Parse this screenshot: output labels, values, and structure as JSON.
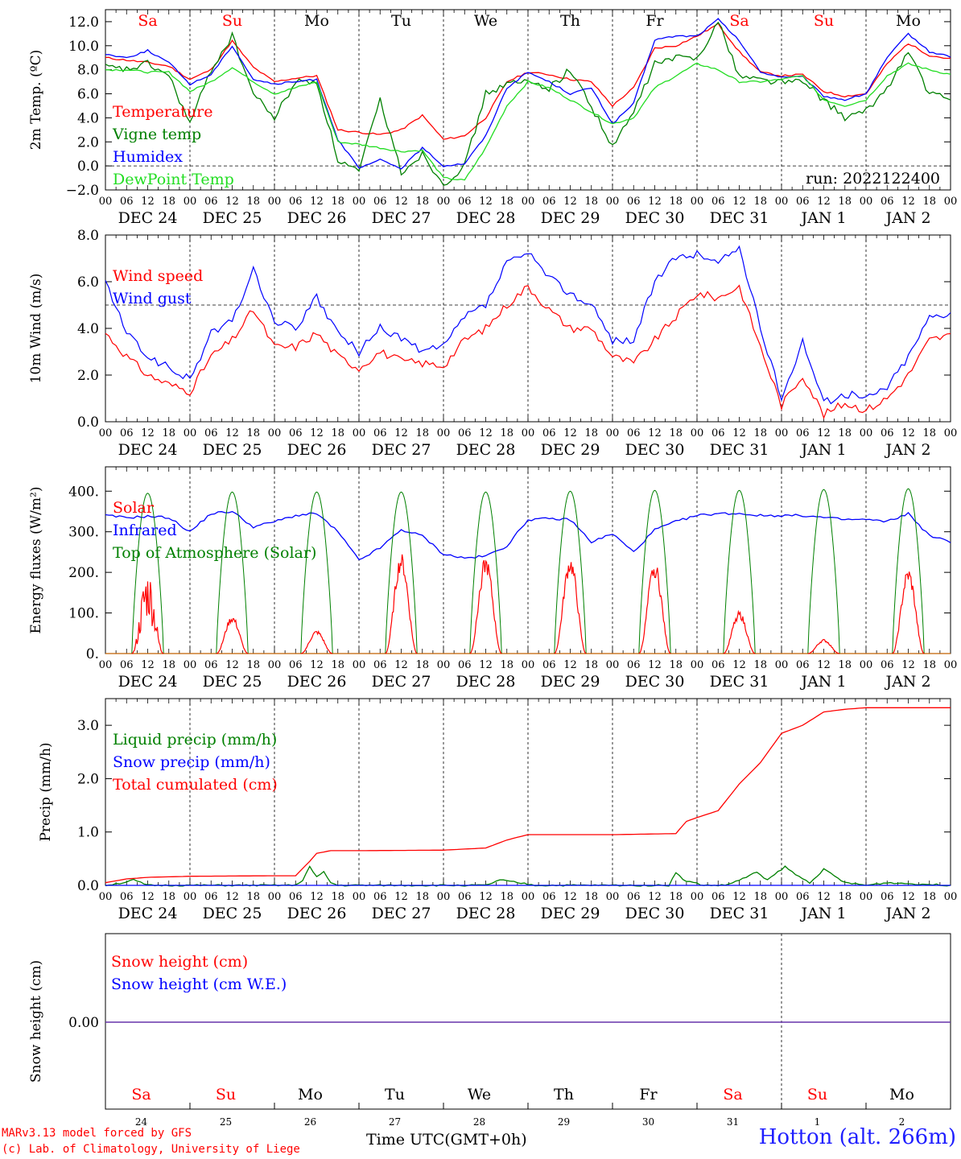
{
  "footer": {
    "credit1": "MARv3.13 model forced by GFS",
    "credit2": "(c) Lab. of Climatology, University of Liege",
    "time_label": "Time UTC(GMT+0h)",
    "station": "Hotton (alt. 266m)"
  },
  "chart_data": [
    {
      "type": "line",
      "panel": "temperature",
      "ylabel": "2m Temp. (ºC)",
      "ylim": [
        -2,
        13
      ],
      "yticks": [
        "−2.0",
        "0.0",
        "2.0",
        "4.0",
        "6.0",
        "8.0",
        "10.0",
        "12.0"
      ],
      "reference_line": 0,
      "annotation": "run: 2022122400",
      "day_names": [
        "Sa",
        "Su",
        "Mo",
        "Tu",
        "We",
        "Th",
        "Fr",
        "Sa",
        "Su",
        "Mo"
      ],
      "day_colors": [
        "#ff0000",
        "#ff0000",
        "#000000",
        "#000000",
        "#000000",
        "#000000",
        "#000000",
        "#ff0000",
        "#ff0000",
        "#000000"
      ],
      "hour_labels": [
        "00",
        "06",
        "12",
        "18"
      ],
      "date_labels": [
        "DEC 24",
        "DEC 25",
        "DEC 26",
        "DEC 27",
        "DEC 28",
        "DEC 29",
        "DEC 30",
        "DEC 31",
        "JAN  1",
        "JAN  2"
      ],
      "x_hours": [
        0,
        6,
        12,
        18,
        24,
        30,
        36,
        42,
        48,
        54,
        60,
        66,
        72,
        78,
        84,
        90,
        96,
        102,
        108,
        114,
        120,
        126,
        132,
        138,
        144,
        150,
        156,
        162,
        168,
        174,
        180,
        186,
        192,
        198,
        204,
        210,
        216,
        222,
        228,
        234,
        240
      ],
      "series": [
        {
          "name": "Temperature",
          "color": "#ff0000",
          "values": [
            9.0,
            8.8,
            8.6,
            8.3,
            7.2,
            8.0,
            10.4,
            8.2,
            7.0,
            7.3,
            7.5,
            3.0,
            2.8,
            2.6,
            3.0,
            4.2,
            2.2,
            2.5,
            4.0,
            7.0,
            7.8,
            7.6,
            7.2,
            7.0,
            5.0,
            6.5,
            9.8,
            10.0,
            10.8,
            11.8,
            9.5,
            7.8,
            7.5,
            7.6,
            6.2,
            5.8,
            6.0,
            8.5,
            10.2,
            9.2,
            8.9
          ]
        },
        {
          "name": "Vigne temp",
          "color": "#008000",
          "values": [
            8.2,
            8.0,
            8.5,
            7.5,
            3.5,
            8.0,
            10.8,
            6.0,
            4.0,
            7.0,
            7.0,
            0.5,
            -0.5,
            5.5,
            -0.5,
            1.0,
            -1.5,
            0.0,
            6.0,
            6.8,
            7.0,
            6.5,
            8.0,
            5.0,
            1.5,
            4.5,
            8.5,
            9.0,
            9.0,
            12.0,
            7.5,
            7.2,
            7.0,
            7.0,
            5.5,
            4.0,
            4.5,
            6.5,
            9.5,
            6.0,
            5.5
          ]
        },
        {
          "name": "Humidex",
          "color": "#0000ff",
          "values": [
            9.3,
            9.0,
            9.6,
            8.6,
            6.8,
            7.6,
            10.0,
            7.2,
            6.8,
            7.0,
            7.2,
            2.2,
            -0.2,
            0.5,
            -0.2,
            1.5,
            0.0,
            0.2,
            2.5,
            6.5,
            7.8,
            7.0,
            6.0,
            6.5,
            3.5,
            5.2,
            10.5,
            10.8,
            10.8,
            12.2,
            10.4,
            7.8,
            7.4,
            7.4,
            5.8,
            5.5,
            6.0,
            9.0,
            11.0,
            9.5,
            9.1
          ]
        },
        {
          "name": "DewPoint Temp",
          "color": "#22dd22",
          "values": [
            8.0,
            8.0,
            7.8,
            7.8,
            6.2,
            7.0,
            8.2,
            7.0,
            6.0,
            6.5,
            7.0,
            2.0,
            1.8,
            1.5,
            1.2,
            1.3,
            -1.0,
            -1.2,
            1.5,
            5.0,
            7.0,
            6.5,
            5.5,
            4.5,
            3.5,
            4.0,
            6.5,
            7.5,
            8.5,
            8.0,
            7.0,
            7.0,
            7.2,
            7.5,
            5.5,
            5.0,
            5.5,
            7.5,
            8.5,
            8.0,
            7.6
          ]
        }
      ]
    },
    {
      "type": "line",
      "panel": "wind",
      "ylabel": "10m Wind (m/s)",
      "ylim": [
        0,
        8
      ],
      "yticks": [
        "0.0",
        "2.0",
        "4.0",
        "6.0",
        "8.0"
      ],
      "reference_line": 5,
      "hour_labels": [
        "00",
        "06",
        "12",
        "18"
      ],
      "date_labels": [
        "DEC 24",
        "DEC 25",
        "DEC 26",
        "DEC 27",
        "DEC 28",
        "DEC 29",
        "DEC 30",
        "DEC 31",
        "JAN  1",
        "JAN  2"
      ],
      "x_hours": [
        0,
        6,
        12,
        18,
        24,
        30,
        36,
        42,
        48,
        54,
        60,
        66,
        72,
        78,
        84,
        90,
        96,
        102,
        108,
        114,
        120,
        126,
        132,
        138,
        144,
        150,
        156,
        162,
        168,
        174,
        180,
        186,
        192,
        198,
        204,
        210,
        216,
        222,
        228,
        234,
        240
      ],
      "series": [
        {
          "name": "Wind speed",
          "color": "#ff0000",
          "values": [
            3.8,
            2.8,
            2.0,
            1.6,
            1.3,
            2.8,
            3.5,
            4.8,
            3.2,
            3.2,
            3.8,
            2.8,
            2.3,
            3.0,
            2.6,
            2.5,
            2.4,
            3.5,
            4.0,
            5.0,
            5.8,
            4.8,
            4.0,
            4.0,
            2.8,
            2.5,
            3.5,
            4.5,
            5.5,
            5.3,
            5.8,
            3.2,
            0.7,
            2.0,
            0.3,
            0.8,
            0.5,
            1.0,
            2.0,
            3.5,
            3.7
          ]
        },
        {
          "name": "Wind gust",
          "color": "#0000ff",
          "values": [
            6.0,
            3.8,
            2.8,
            2.3,
            1.8,
            3.8,
            4.3,
            6.5,
            4.3,
            4.0,
            5.3,
            3.8,
            3.0,
            4.0,
            3.6,
            3.0,
            3.2,
            4.5,
            5.0,
            6.8,
            7.2,
            6.2,
            5.5,
            5.0,
            3.5,
            3.5,
            6.0,
            7.0,
            7.2,
            6.8,
            7.5,
            4.0,
            1.0,
            3.5,
            0.8,
            1.2,
            1.0,
            1.5,
            2.8,
            4.5,
            4.7
          ]
        }
      ]
    },
    {
      "type": "line",
      "panel": "energy",
      "ylabel": "Energy fluxes (W/m²)",
      "ylim": [
        0,
        460
      ],
      "yticks": [
        "0.",
        "100.",
        "200.",
        "300.",
        "400."
      ],
      "hour_labels": [
        "00",
        "06",
        "12",
        "18"
      ],
      "date_labels": [
        "DEC 24",
        "DEC 25",
        "DEC 26",
        "DEC 27",
        "DEC 28",
        "DEC 29",
        "DEC 30",
        "DEC 31",
        "JAN  1",
        "JAN  2"
      ],
      "daily_peak_hour": 12,
      "daily_halfwidth_hours": 4.5,
      "toa_peaks": [
        395,
        398,
        398,
        398,
        398,
        400,
        402,
        402,
        404,
        406
      ],
      "solar_peaks": [
        145,
        85,
        52,
        225,
        218,
        218,
        208,
        95,
        32,
        192
      ],
      "series": [
        {
          "name": "Solar",
          "color": "#ff0000"
        },
        {
          "name": "Infrared",
          "color": "#0000ff",
          "x_hours": [
            0,
            6,
            12,
            18,
            24,
            30,
            36,
            42,
            48,
            54,
            60,
            66,
            72,
            78,
            84,
            90,
            96,
            102,
            108,
            114,
            120,
            126,
            132,
            138,
            144,
            150,
            156,
            162,
            168,
            174,
            180,
            186,
            192,
            198,
            204,
            210,
            216,
            222,
            228,
            234,
            240
          ],
          "values": [
            340,
            335,
            338,
            335,
            300,
            345,
            350,
            312,
            325,
            340,
            345,
            300,
            230,
            260,
            305,
            290,
            245,
            235,
            240,
            265,
            330,
            332,
            330,
            275,
            295,
            250,
            305,
            325,
            340,
            345,
            345,
            340,
            340,
            340,
            335,
            330,
            330,
            325,
            345,
            290,
            275
          ]
        },
        {
          "name": "Top of Atmosphere (Solar)",
          "color": "#008000"
        }
      ]
    },
    {
      "type": "line",
      "panel": "precip",
      "ylabel": "Precip (mm/h)",
      "ylim": [
        0,
        3.5
      ],
      "yticks": [
        "0.0",
        "1.0",
        "2.0",
        "3.0"
      ],
      "hour_labels": [
        "00",
        "06",
        "12",
        "18"
      ],
      "date_labels": [
        "DEC 24",
        "DEC 25",
        "DEC 26",
        "DEC 27",
        "DEC 28",
        "DEC 29",
        "DEC 30",
        "DEC 31",
        "JAN  1",
        "JAN  2"
      ],
      "series": [
        {
          "name": "Liquid precip (mm/h)",
          "color": "#008000",
          "x_hours": [
            0,
            5,
            8,
            12,
            30,
            54,
            56,
            58,
            60,
            62,
            64,
            66,
            70,
            90,
            108,
            112,
            117,
            122,
            150,
            160,
            162,
            164,
            170,
            176,
            182,
            185,
            188,
            193,
            196,
            200,
            204,
            210,
            216,
            222,
            240
          ],
          "values": [
            0.0,
            0.05,
            0.1,
            0.0,
            0.0,
            0.0,
            0.1,
            0.35,
            0.15,
            0.25,
            0.05,
            0.0,
            0.0,
            0.0,
            0.0,
            0.1,
            0.05,
            0.0,
            0.0,
            0.0,
            0.25,
            0.1,
            0.0,
            0.0,
            0.15,
            0.25,
            0.1,
            0.35,
            0.2,
            0.05,
            0.3,
            0.05,
            0.0,
            0.05,
            0.0
          ]
        },
        {
          "name": "Snow precip (mm/h)",
          "color": "#0000ff",
          "x_hours": [
            0,
            240
          ],
          "values": [
            0.0,
            0.0
          ]
        },
        {
          "name": "Total cumulated (cm)",
          "color": "#ff0000",
          "x_hours": [
            0,
            6,
            12,
            24,
            48,
            54,
            58,
            60,
            64,
            72,
            96,
            108,
            114,
            120,
            144,
            162,
            165,
            168,
            174,
            180,
            186,
            192,
            198,
            204,
            210,
            216,
            240
          ],
          "values": [
            0.05,
            0.12,
            0.15,
            0.17,
            0.18,
            0.18,
            0.45,
            0.6,
            0.65,
            0.65,
            0.66,
            0.7,
            0.85,
            0.95,
            0.95,
            0.97,
            1.2,
            1.27,
            1.4,
            1.9,
            2.3,
            2.85,
            3.0,
            3.25,
            3.3,
            3.33,
            3.33
          ]
        }
      ]
    },
    {
      "type": "line",
      "panel": "snow",
      "ylabel": "Snow height (cm)",
      "ytick": "0.00",
      "day_names": [
        "Sa",
        "Su",
        "Mo",
        "Tu",
        "We",
        "Th",
        "Fr",
        "Sa",
        "Su",
        "Mo"
      ],
      "day_colors": [
        "#ff0000",
        "#ff0000",
        "#000000",
        "#000000",
        "#000000",
        "#000000",
        "#000000",
        "#ff0000",
        "#ff0000",
        "#000000"
      ],
      "day_numbers": [
        "24",
        "25",
        "26",
        "27",
        "28",
        "29",
        "30",
        "31",
        "1",
        "2"
      ],
      "series": [
        {
          "name": "Snow height (cm)",
          "color": "#ff0000",
          "x_hours": [
            0,
            240
          ],
          "values": [
            0,
            0
          ]
        },
        {
          "name": "Snow height (cm W.E.)",
          "color": "#0000ff",
          "x_hours": [
            0,
            240
          ],
          "values": [
            0,
            0
          ]
        }
      ]
    }
  ]
}
